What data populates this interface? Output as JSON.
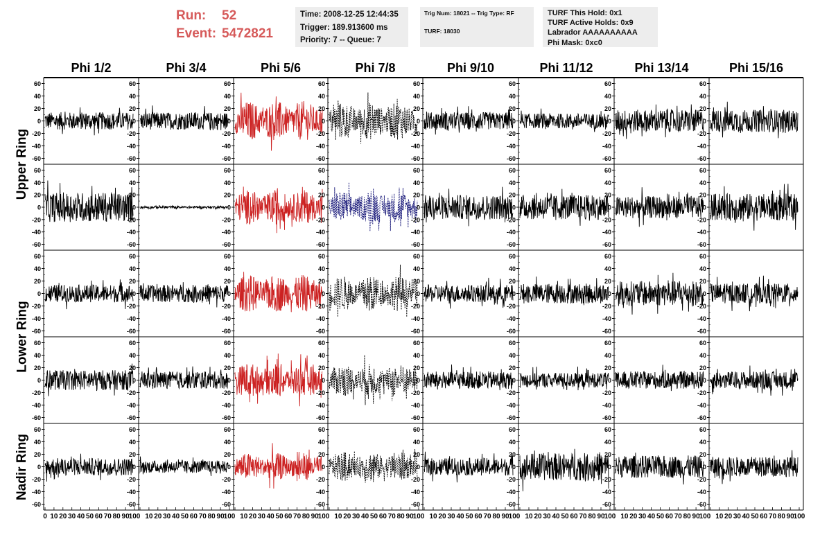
{
  "header": {
    "run_label": "Run:",
    "run_value": "52",
    "event_label": "Event:",
    "event_value": "5472821",
    "time_line": "Time: 2008-12-25 12:44:35",
    "trigger_line": "Trigger: 189.913600 ms",
    "priority_line": "Priority: 7 -- Queue: 7",
    "trig_line": "Trig Num: 18021 -- Trig Type: RF",
    "turf_line": "TURF: 18030",
    "turf_hold_line": "TURF This Hold: 0x1",
    "turf_active_line": "TURF Active Holds: 0x9",
    "labrador_line": "Labrador AAAAAAAAAA",
    "phi_mask_line": "Phi Mask: 0xc0"
  },
  "colors": {
    "accent_text": "#d65a5a",
    "normal_trace": "#000000",
    "triggered_trace": "#cc2222",
    "masked_trace": "#000000",
    "masked_highlight_trace": "#1a1a7a",
    "info_box_bg": "#ededed"
  },
  "chart_data": {
    "type": "line",
    "columns": [
      "Phi 1/2",
      "Phi 3/4",
      "Phi 5/6",
      "Phi 7/8",
      "Phi 9/10",
      "Phi 11/12",
      "Phi 13/14",
      "Phi 15/16"
    ],
    "rows": [
      "Upper Ring",
      "Upper Ring",
      "Lower Ring",
      "Lower Ring",
      "Nadir Ring"
    ],
    "row_titles": [
      "Upper Ring",
      "Lower Ring",
      "Nadir Ring"
    ],
    "xlim": [
      0,
      100
    ],
    "ylim": [
      -65,
      65
    ],
    "y_ticks": [
      -60,
      -40,
      -20,
      0,
      20,
      40,
      60
    ],
    "x_tick_labels": [
      "0",
      "10",
      "20",
      "30",
      "40",
      "50",
      "60",
      "70",
      "80",
      "90",
      "100"
    ],
    "samples_per_trace": 260,
    "trace_amplitude": [
      [
        14,
        14,
        32,
        30,
        14,
        12,
        18,
        18
      ],
      [
        24,
        2,
        28,
        26,
        20,
        20,
        18,
        22
      ],
      [
        14,
        14,
        30,
        28,
        14,
        16,
        20,
        16
      ],
      [
        16,
        14,
        28,
        26,
        14,
        12,
        14,
        14
      ],
      [
        14,
        10,
        22,
        24,
        14,
        22,
        18,
        16
      ]
    ],
    "trace_style": [
      [
        "solid",
        "solid",
        "red",
        "dashed",
        "solid",
        "solid",
        "solid",
        "solid"
      ],
      [
        "solid",
        "solid",
        "red",
        "dashed-blue",
        "solid",
        "solid",
        "solid",
        "solid"
      ],
      [
        "solid",
        "solid",
        "red",
        "dashed",
        "solid",
        "solid",
        "solid",
        "solid"
      ],
      [
        "solid",
        "solid",
        "red",
        "dashed",
        "solid",
        "solid",
        "solid",
        "solid"
      ],
      [
        "solid",
        "solid",
        "red",
        "dashed",
        "solid",
        "solid",
        "solid",
        "solid"
      ]
    ],
    "grid": false
  }
}
